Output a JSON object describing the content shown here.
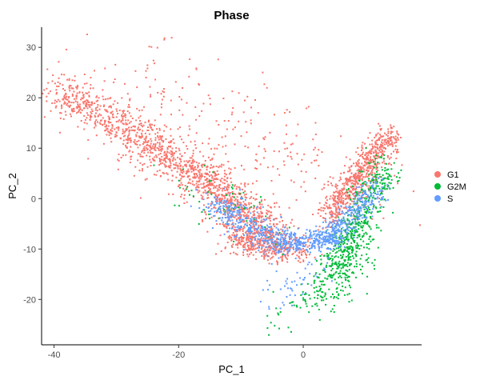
{
  "chart_data": {
    "type": "scatter",
    "title": "Phase",
    "xlabel": "PC_1",
    "ylabel": "PC_2",
    "xlim": [
      -42,
      19
    ],
    "ylim": [
      -29,
      34
    ],
    "xticks": [
      -40,
      -20,
      0
    ],
    "yticks": [
      -20,
      -10,
      0,
      10,
      20,
      30
    ],
    "grid": false,
    "legend_position": "right",
    "series": [
      {
        "name": "G1",
        "color": "#F8766D",
        "clusters": [
          {
            "x": [
              -40,
              -26
            ],
            "y": [
              22,
              12
            ],
            "spread": 3.2,
            "n": 420
          },
          {
            "x": [
              -26,
              -14
            ],
            "y": [
              12,
              2
            ],
            "spread": 3.5,
            "n": 520
          },
          {
            "x": [
              -14,
              -5
            ],
            "y": [
              2,
              -8
            ],
            "spread": 3.5,
            "n": 520
          },
          {
            "x": [
              -12,
              0
            ],
            "y": [
              -8,
              -10
            ],
            "spread": 2.5,
            "n": 380
          },
          {
            "x": [
              4,
              14
            ],
            "y": [
              -4,
              13
            ],
            "spread": 2.2,
            "n": 650
          },
          {
            "x": [
              -30,
              10
            ],
            "y": [
              24,
              0
            ],
            "spread": 9,
            "n": 280
          }
        ]
      },
      {
        "name": "G2M",
        "color": "#00BA38",
        "clusters": [
          {
            "x": [
              5,
              13
            ],
            "y": [
              -14,
              7
            ],
            "spread": 2.6,
            "n": 460
          },
          {
            "x": [
              2,
              10
            ],
            "y": [
              -21,
              -8
            ],
            "spread": 3.2,
            "n": 180
          },
          {
            "x": [
              -8,
              6
            ],
            "y": [
              -26,
              -16
            ],
            "spread": 3.5,
            "n": 45
          },
          {
            "x": [
              -20,
              -2
            ],
            "y": [
              4,
              -8
            ],
            "spread": 4,
            "n": 60
          }
        ]
      },
      {
        "name": "S",
        "color": "#619CFF",
        "clusters": [
          {
            "x": [
              -14,
              -4
            ],
            "y": [
              -1,
              -9
            ],
            "spread": 2.5,
            "n": 320
          },
          {
            "x": [
              -4,
              5
            ],
            "y": [
              -9,
              -8
            ],
            "spread": 2,
            "n": 260
          },
          {
            "x": [
              4,
              12
            ],
            "y": [
              -8,
              2
            ],
            "spread": 2,
            "n": 320
          },
          {
            "x": [
              -5,
              3
            ],
            "y": [
              -20,
              -13
            ],
            "spread": 2.5,
            "n": 50
          }
        ]
      }
    ]
  }
}
